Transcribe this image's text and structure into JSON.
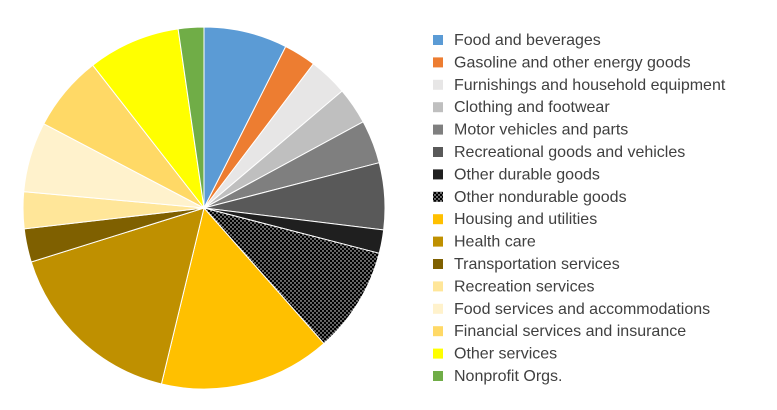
{
  "chart_data": {
    "type": "pie",
    "title": "",
    "legend_position": "right",
    "start_angle_deg": 0,
    "direction": "clockwise",
    "slices": [
      {
        "label": "Food and beverages",
        "value": 7.5,
        "color": "#5b9bd5",
        "pattern": "solid"
      },
      {
        "label": "Gasoline and other energy goods",
        "value": 2.9,
        "color": "#ed7d31",
        "pattern": "solid"
      },
      {
        "label": "Furnishings and household equipment",
        "value": 3.5,
        "color": "#e7e6e6",
        "pattern": "solid"
      },
      {
        "label": "Clothing and footwear",
        "value": 3.3,
        "color": "#bfbfbf",
        "pattern": "solid"
      },
      {
        "label": "Motor vehicles and parts",
        "value": 3.9,
        "color": "#7f7f7f",
        "pattern": "solid"
      },
      {
        "label": "Recreational goods and vehicles",
        "value": 6.0,
        "color": "#595959",
        "pattern": "solid"
      },
      {
        "label": "Other durable goods",
        "value": 2.1,
        "color": "#1f1f1f",
        "pattern": "solid"
      },
      {
        "label": "Other nondurable goods",
        "value": 9.5,
        "color": "#000000",
        "pattern": "dotted"
      },
      {
        "label": "Housing and utilities",
        "value": 15.4,
        "color": "#ffc000",
        "pattern": "solid"
      },
      {
        "label": "Health care",
        "value": 16.5,
        "color": "#bf9000",
        "pattern": "solid"
      },
      {
        "label": "Transportation services",
        "value": 3.0,
        "color": "#7f6000",
        "pattern": "solid"
      },
      {
        "label": "Recreation services",
        "value": 3.3,
        "color": "#ffe699",
        "pattern": "solid"
      },
      {
        "label": "Food services and accommodations",
        "value": 6.3,
        "color": "#fff2cc",
        "pattern": "solid"
      },
      {
        "label": "Financial services and insurance",
        "value": 6.8,
        "color": "#ffd966",
        "pattern": "solid"
      },
      {
        "label": "Other services",
        "value": 8.3,
        "color": "#ffff00",
        "pattern": "solid"
      },
      {
        "label": "Nonprofit Orgs.",
        "value": 2.3,
        "color": "#70ad47",
        "pattern": "solid"
      }
    ]
  }
}
